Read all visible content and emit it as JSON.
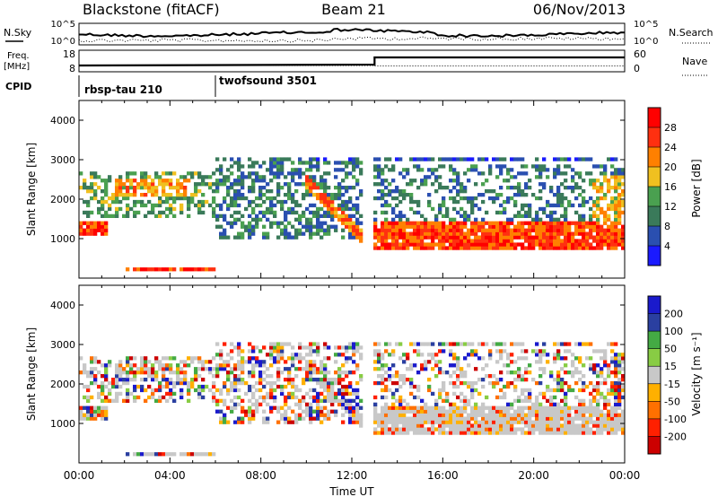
{
  "header": {
    "title": "Blackstone (fitACF)",
    "beam": "Beam 21",
    "date": "06/Nov/2013"
  },
  "params": {
    "nsky_label": "N.Sky",
    "nsearch_label": "N.Search",
    "freq_label": "Freq.",
    "freq_unit": "[MHz]",
    "nave_label": "Nave",
    "cpid_label": "CPID",
    "noise_ticks_left": [
      "10^5",
      "10^0"
    ],
    "noise_ticks_right": [
      "10^5",
      "10^0"
    ],
    "freq_ticks": [
      "18",
      "8"
    ],
    "nave_ticks": [
      "60",
      "0"
    ],
    "cpid_segments": [
      {
        "name": "rbsp-tau 210",
        "start_hour": 0
      },
      {
        "name": "twofsound 3501",
        "start_hour": 6
      }
    ]
  },
  "chart_data": [
    {
      "type": "heatmap",
      "panel": "power",
      "ylabel": "Slant Range [km]",
      "xlim_hours": [
        0,
        24
      ],
      "ylim_km": [
        0,
        4500
      ],
      "y_ticks": [
        1000,
        2000,
        3000,
        4000
      ],
      "colorbar": {
        "label": "Power [dB]",
        "ticks": [
          "4",
          "8",
          "12",
          "16",
          "20",
          "24",
          "28"
        ],
        "colors": [
          "#1a1aff",
          "#2a4fb0",
          "#3a7a5a",
          "#4aa050",
          "#f0c020",
          "#ff8000",
          "#ff3010",
          "#ff0000"
        ]
      },
      "echo_regions": [
        {
          "label": "near-range band",
          "x_hours": [
            0,
            6
          ],
          "range_km": [
            1000,
            2700
          ]
        },
        {
          "label": "main band",
          "x_hours": [
            13,
            24
          ],
          "range_km": [
            700,
            1400
          ]
        },
        {
          "label": "upper band",
          "x_hours": [
            6,
            24
          ],
          "range_km": [
            1400,
            3000
          ]
        }
      ]
    },
    {
      "type": "heatmap",
      "panel": "velocity",
      "ylabel": "Slant Range [km]",
      "xlabel": "Time UT",
      "xlim_hours": [
        0,
        24
      ],
      "ylim_km": [
        0,
        4500
      ],
      "y_ticks": [
        1000,
        2000,
        3000,
        4000
      ],
      "x_ticks": [
        "00:00",
        "04:00",
        "08:00",
        "12:00",
        "16:00",
        "20:00",
        "00:00"
      ],
      "colorbar": {
        "label": "Velocity [m s⁻¹]",
        "ticks": [
          "200",
          "100",
          "50",
          "15",
          "-15",
          "-50",
          "-100",
          "-200"
        ],
        "colors": [
          "#1a1acc",
          "#2a3fa0",
          "#44aa44",
          "#88cc44",
          "#c8c8c8",
          "#ffb000",
          "#ff7000",
          "#ff2000",
          "#cc0000"
        ]
      }
    }
  ]
}
